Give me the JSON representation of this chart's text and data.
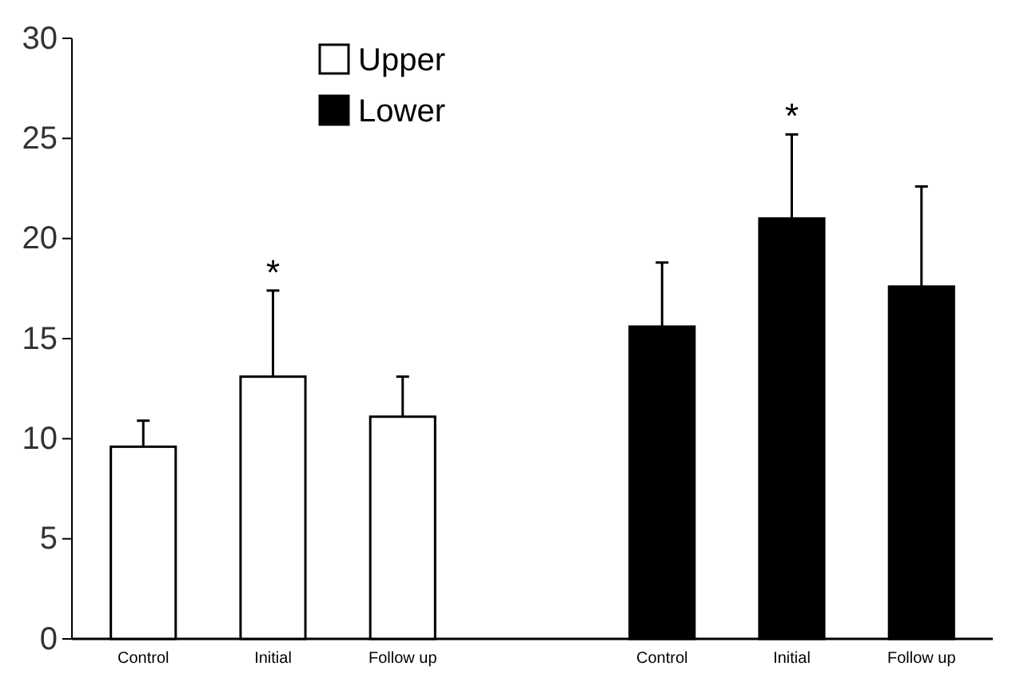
{
  "chart_data": {
    "type": "bar",
    "categories": [
      "Control",
      "Initial",
      "Follow up",
      null,
      "Control",
      "Initial",
      "Follow up"
    ],
    "series": [
      {
        "name": "Upper",
        "color": "#ffffff",
        "values": [
          9.6,
          13.1,
          11.1,
          null,
          null,
          null,
          null
        ],
        "errors": [
          [
            9.6,
            10.9
          ],
          [
            13.1,
            17.4
          ],
          [
            11.1,
            13.1
          ],
          null,
          null,
          null,
          null
        ],
        "value_labels": [
          null,
          "*",
          null,
          null,
          null,
          null,
          null
        ]
      },
      {
        "name": "Lower",
        "color": "#000000",
        "values": [
          null,
          null,
          null,
          null,
          15.6,
          21.0,
          17.6
        ],
        "errors": [
          null,
          null,
          null,
          null,
          [
            15.6,
            18.8
          ],
          [
            21.0,
            25.2
          ],
          [
            17.6,
            22.6
          ]
        ],
        "value_labels": [
          null,
          null,
          null,
          null,
          null,
          "*",
          null
        ]
      }
    ],
    "ylim": [
      0,
      30
    ],
    "yticks": [
      0,
      5,
      10,
      15,
      20,
      25,
      30
    ],
    "grid": false,
    "legend": "top left"
  }
}
